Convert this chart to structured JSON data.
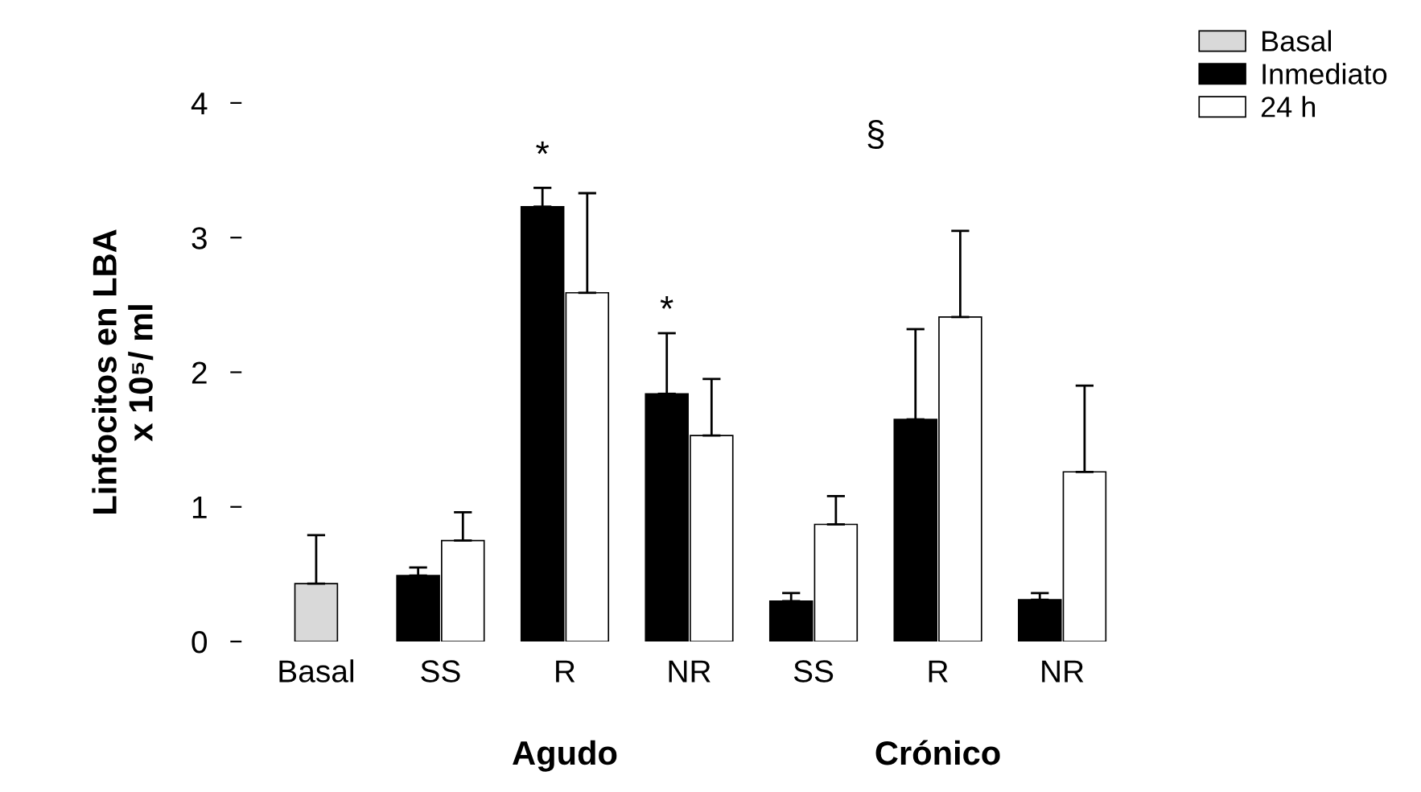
{
  "chart_data": {
    "type": "bar",
    "ylabel": "Linfocitos en LBA\nx 10⁵/ ml",
    "categories": [
      "Basal",
      "SS",
      "R",
      "NR",
      "SS",
      "R",
      "NR"
    ],
    "series": [
      {
        "name": "Basal",
        "color": "#d9d9d9",
        "values": [
          0.43,
          null,
          null,
          null,
          null,
          null,
          null
        ],
        "errors": [
          [
            0.43,
            0.79
          ],
          null,
          null,
          null,
          null,
          null,
          null
        ]
      },
      {
        "name": "Inmediato",
        "color": "#000000",
        "values": [
          null,
          0.49,
          3.23,
          1.84,
          0.3,
          1.65,
          0.31
        ],
        "errors": [
          null,
          [
            0.49,
            0.55
          ],
          [
            3.23,
            3.37
          ],
          [
            1.84,
            2.29
          ],
          [
            0.3,
            0.36
          ],
          [
            1.65,
            2.32
          ],
          [
            0.31,
            0.36
          ]
        ]
      },
      {
        "name": "24 h",
        "color": "#ffffff",
        "values": [
          null,
          0.75,
          2.59,
          1.53,
          0.87,
          2.41,
          1.26
        ],
        "errors": [
          null,
          [
            0.75,
            0.96
          ],
          [
            2.59,
            3.33
          ],
          [
            1.53,
            1.95
          ],
          [
            0.87,
            1.08
          ],
          [
            2.41,
            3.05
          ],
          [
            1.26,
            1.9
          ]
        ]
      }
    ],
    "ylim": [
      0,
      4
    ],
    "yticks": [
      0,
      1,
      2,
      3,
      4
    ],
    "grid": false,
    "legend": "top right",
    "annotations": [
      "*",
      "*",
      "§",
      "Agudo",
      "Crónico"
    ]
  }
}
